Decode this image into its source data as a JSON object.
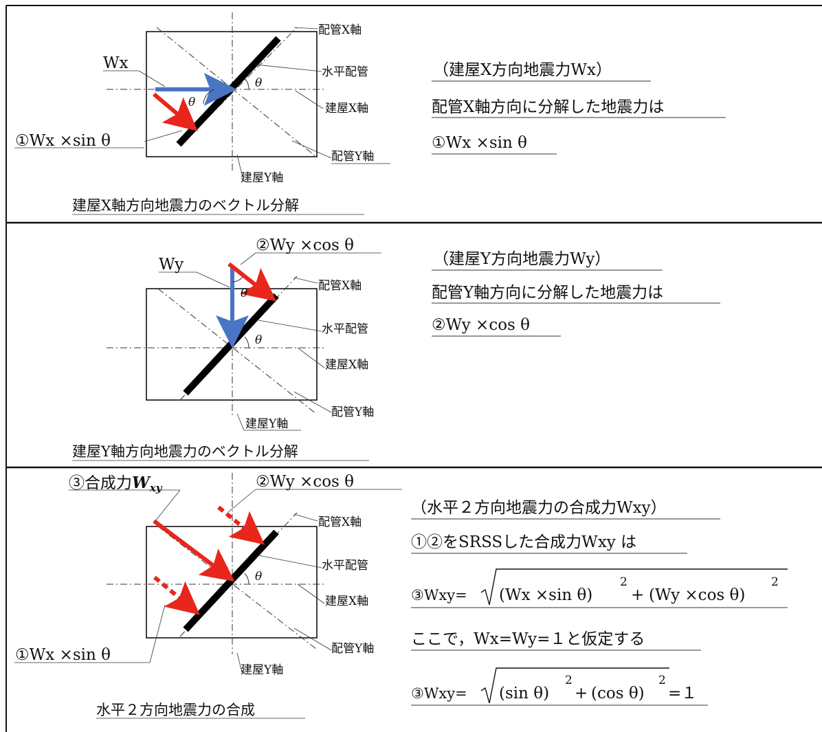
{
  "panels": [
    {
      "caption": "建屋X軸方向地震力のベクトル分解",
      "labels": {
        "pipe_x_axis": "配管X軸",
        "horizontal_pipe": "水平配管",
        "bldg_x_axis": "建屋X軸",
        "pipe_y_axis": "配管Y軸",
        "bldg_y_axis": "建屋Y軸",
        "force": "Wx",
        "component": "①Wx ×sin θ",
        "theta1": "θ",
        "theta2": "θ"
      },
      "explanation": {
        "line1": "（建屋X方向地震力Wx）",
        "line2": "配管X軸方向に分解した地震力は",
        "line3": "①Wx ×sin θ"
      }
    },
    {
      "caption": "建屋Y軸方向地震力のベクトル分解",
      "labels": {
        "pipe_x_axis": "配管X軸",
        "horizontal_pipe": "水平配管",
        "bldg_x_axis": "建屋X軸",
        "pipe_y_axis": "配管Y軸",
        "bldg_y_axis": "建屋Y軸",
        "force": "Wy",
        "component": "②Wy ×cos θ",
        "theta1": "θ",
        "theta2": "θ"
      },
      "explanation": {
        "line1": "（建屋Y方向地震力Wy）",
        "line2": "配管Y軸方向に分解した地震力は",
        "line3": "②Wy ×cos θ"
      }
    },
    {
      "caption": "水平２方向地震力の合成",
      "labels": {
        "pipe_x_axis": "配管X軸",
        "horizontal_pipe": "水平配管",
        "bldg_x_axis": "建屋X軸",
        "pipe_y_axis": "配管Y軸",
        "bldg_y_axis": "建屋Y軸",
        "resultant_prefix": "③合成力",
        "resultant_symbol": "W",
        "resultant_sub": "xy",
        "component1": "①Wx ×sin θ",
        "component2": "②Wy ×cos θ",
        "theta": "θ"
      },
      "explanation": {
        "line1": "（水平２方向地震力の合成力Wxy）",
        "line2": "①②をSRSSした合成力Wxy は",
        "eq1_lhs": "③Wxy=",
        "eq1_term1": "(Wx ×sin θ)",
        "eq1_plus": "+",
        "eq1_term2": "(Wy ×cos θ)",
        "exp": "2",
        "line4": "ここで，Wx=Wy=１と仮定する",
        "eq2_lhs": "③Wxy=",
        "eq2_term1": "(sin θ)",
        "eq2_plus": "+",
        "eq2_term2": "(cos θ)",
        "eq2_rhs": "=１"
      }
    }
  ],
  "colors": {
    "pipe": "#000000",
    "red_arrow": "#e8261c",
    "blue_arrow": "#4a74c4",
    "frame": "#111111"
  }
}
